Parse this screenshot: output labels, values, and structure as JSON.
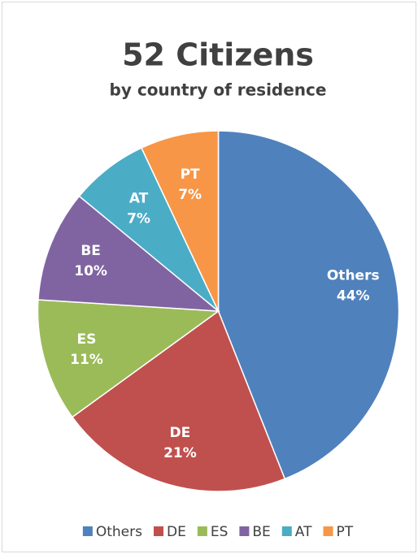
{
  "chart_data": {
    "type": "pie",
    "title": "52 Citizens",
    "subtitle": "by country of residence",
    "categories": [
      "Others",
      "DE",
      "ES",
      "BE",
      "AT",
      "PT"
    ],
    "values": [
      44,
      21,
      11,
      10,
      7,
      7
    ],
    "value_labels": [
      "44%",
      "21%",
      "11%",
      "10%",
      "7%",
      "7%"
    ],
    "colors": [
      "#4f81bd",
      "#c0504d",
      "#9bbb59",
      "#8064a2",
      "#4bacc6",
      "#f79646"
    ],
    "legend": "bottom"
  }
}
